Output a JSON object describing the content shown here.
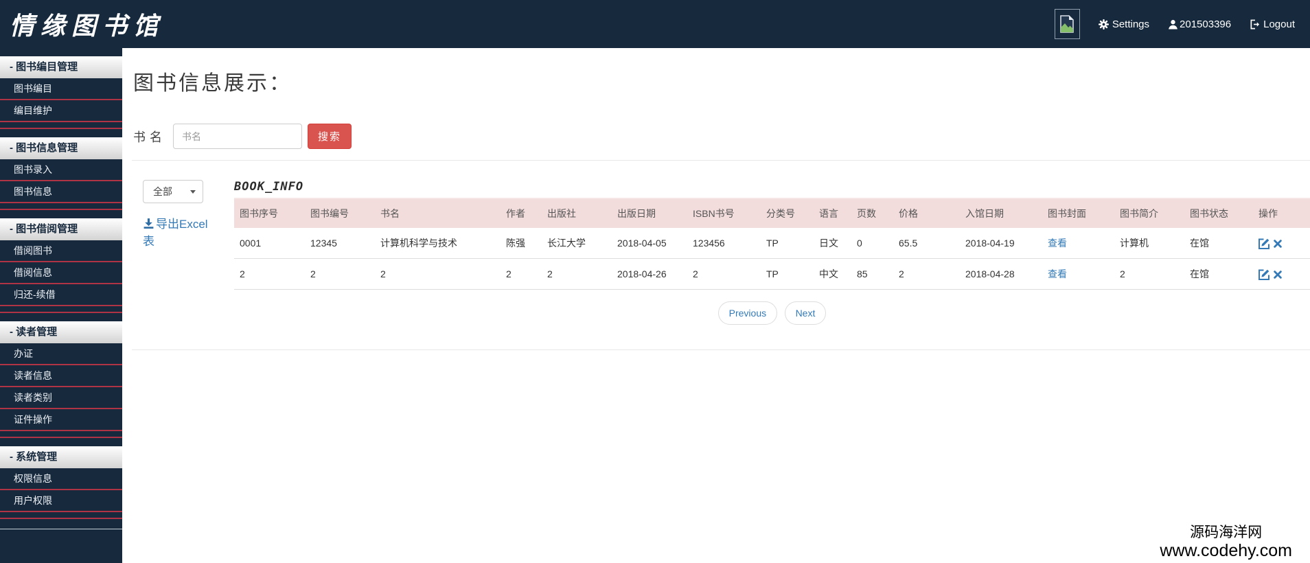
{
  "navbar": {
    "logo": "情缘图书馆",
    "settings_label": "Settings",
    "username": "201503396",
    "logout_label": "Logout"
  },
  "sidebar": {
    "sections": [
      {
        "indicator": "-",
        "label": "图书编目管理",
        "items": [
          "图书编目",
          "编目维护"
        ]
      },
      {
        "indicator": "-",
        "label": "图书信息管理",
        "items": [
          "图书录入",
          "图书信息"
        ]
      },
      {
        "indicator": "-",
        "label": "图书借阅管理",
        "items": [
          "借阅图书",
          "借阅信息",
          "归还-续借"
        ]
      },
      {
        "indicator": "-",
        "label": "读者管理",
        "items": [
          "办证",
          "读者信息",
          "读者类别",
          "证件操作"
        ]
      },
      {
        "indicator": "-",
        "label": "系统管理",
        "items": [
          "权限信息",
          "用户权限"
        ]
      }
    ]
  },
  "main": {
    "page_title": "图书信息展示：",
    "search": {
      "label": "书名",
      "placeholder": "书名",
      "button_label": "搜索"
    },
    "filter": {
      "selected": "全部"
    },
    "export_label": "导出Excel表",
    "table": {
      "title": "BOOK_INFO",
      "columns": [
        "图书序号",
        "图书编号",
        "书名",
        "作者",
        "出版社",
        "出版日期",
        "ISBN书号",
        "分类号",
        "语言",
        "页数",
        "价格",
        "入馆日期",
        "图书封面",
        "图书简介",
        "图书状态",
        "操作"
      ],
      "rows": [
        [
          "0001",
          "12345",
          "计算机科学与技术",
          "陈强",
          "长江大学",
          "2018-04-05",
          "123456",
          "TP",
          "日文",
          "0",
          "65.5",
          "2018-04-19",
          "查看",
          "计算机",
          "在馆"
        ],
        [
          "2",
          "2",
          "2",
          "2",
          "2",
          "2018-04-26",
          "2",
          "TP",
          "中文",
          "85",
          "2",
          "2018-04-28",
          "查看",
          "2",
          "在馆"
        ]
      ]
    },
    "pagination": {
      "previous_label": "Previous",
      "next_label": "Next"
    }
  },
  "watermark": {
    "line1": "源码海洋网",
    "line2": "www.codehy.com"
  },
  "icons": {
    "gear": "⚙",
    "user": "👤",
    "logout": "⎋",
    "broken_image": "🖼",
    "download": "⬇",
    "caret": "▼",
    "edit": "✎",
    "delete": "✖"
  },
  "colors": {
    "navy": "#17293d",
    "separator_red": "#b03245",
    "danger": "#d9534f",
    "link_blue": "#337ab7",
    "table_header_pink": "#f3dcdc",
    "row_border": "#dddddd",
    "watermark_black": "#000000"
  }
}
